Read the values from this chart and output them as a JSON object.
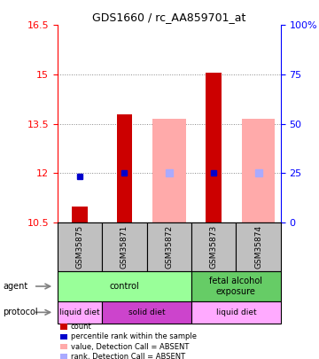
{
  "title": "GDS1660 / rc_AA859701_at",
  "samples": [
    "GSM35875",
    "GSM35871",
    "GSM35872",
    "GSM35873",
    "GSM35874"
  ],
  "ylim_left": [
    10.5,
    16.5
  ],
  "ylim_right": [
    0,
    100
  ],
  "yticks_left": [
    10.5,
    12,
    13.5,
    15,
    16.5
  ],
  "yticks_right": [
    0,
    25,
    50,
    75,
    100
  ],
  "ytick_labels_left": [
    "10.5",
    "12",
    "13.5",
    "15",
    "16.5"
  ],
  "ytick_labels_right": [
    "0",
    "25",
    "50",
    "75",
    "100%"
  ],
  "count_values": [
    11.0,
    13.8,
    10.5,
    15.05,
    10.5
  ],
  "rank_values": [
    11.9,
    12.0,
    10.5,
    12.0,
    10.5
  ],
  "absent_value_bars": [
    null,
    null,
    13.65,
    null,
    13.65
  ],
  "absent_rank_bars": [
    null,
    null,
    12.0,
    null,
    12.0
  ],
  "count_color": "#cc0000",
  "rank_color": "#0000cc",
  "absent_value_color": "#ffaaaa",
  "absent_rank_color": "#aaaaff",
  "bar_bottom": 10.5,
  "agent_row": [
    {
      "label": "control",
      "cols": [
        0,
        1,
        2
      ],
      "color": "#99ff99"
    },
    {
      "label": "fetal alcohol\nexposure",
      "cols": [
        3,
        4
      ],
      "color": "#66cc66"
    }
  ],
  "protocol_row": [
    {
      "label": "liquid diet",
      "cols": [
        0
      ],
      "color": "#ffaaff"
    },
    {
      "label": "solid diet",
      "cols": [
        1,
        2
      ],
      "color": "#cc44cc"
    },
    {
      "label": "liquid diet",
      "cols": [
        3,
        4
      ],
      "color": "#ffaaff"
    }
  ],
  "sample_box_color": "#c0c0c0",
  "grid_color": "#888888",
  "bar_width": 0.35,
  "absent_bar_width": 0.75
}
